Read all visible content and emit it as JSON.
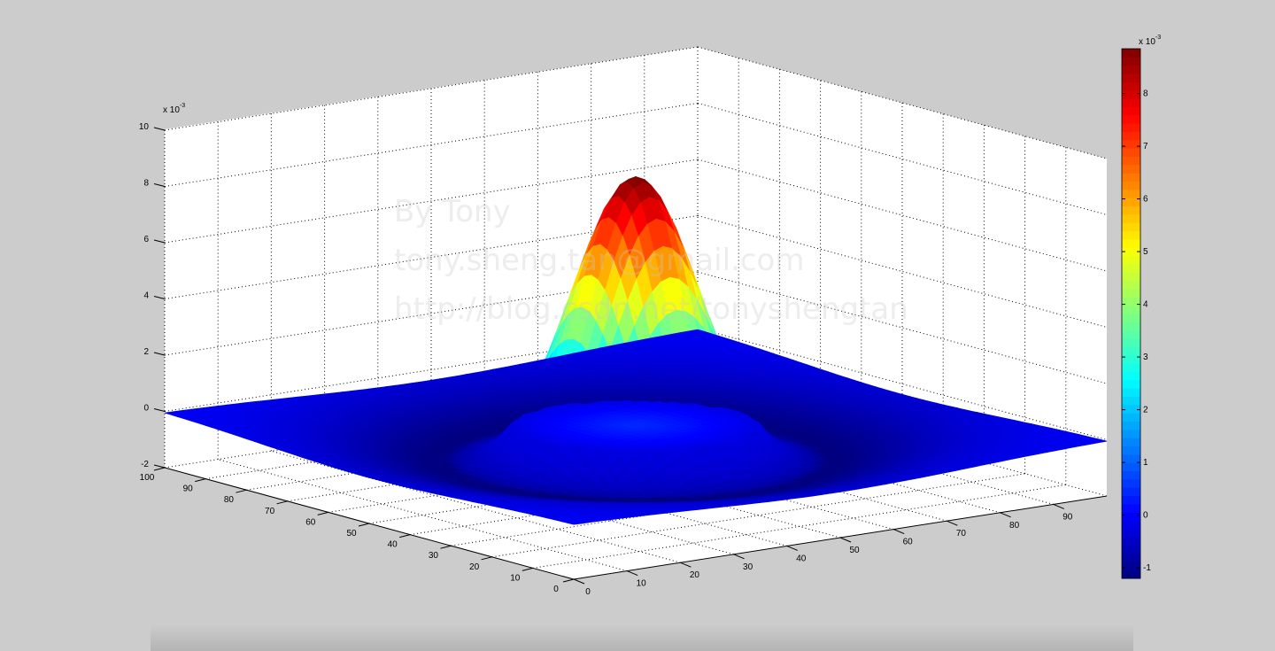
{
  "chart_data": {
    "type": "surface",
    "title": "",
    "xlabel": "",
    "ylabel": "",
    "zlabel": "",
    "x_ticks": [
      0,
      10,
      20,
      30,
      40,
      50,
      60,
      70,
      80,
      90
    ],
    "y_ticks": [
      0,
      10,
      20,
      30,
      40,
      50,
      60,
      70,
      80,
      90,
      100
    ],
    "z_ticks": [
      -2,
      0,
      2,
      4,
      6,
      8,
      10
    ],
    "xlim": [
      0,
      100
    ],
    "ylim": [
      0,
      100
    ],
    "zlim": [
      -2,
      10
    ],
    "z_exponent": {
      "base": "x 10",
      "power": "-3"
    },
    "surface": {
      "shape": "difference-of-gaussians (mexican hat)",
      "center": [
        50,
        50
      ],
      "peak_value": 8.85,
      "min_value": -1.24,
      "edge_value": 0,
      "units_scale": "x 10^-3"
    },
    "grid": true,
    "box": "3d",
    "colormap": "jet",
    "colorbar": {
      "position": "right",
      "ticks": [
        -1,
        0,
        1,
        2,
        3,
        4,
        5,
        6,
        7,
        8
      ],
      "clim": [
        -1.2,
        8.85
      ],
      "exponent": {
        "base": "x 10",
        "power": "-3"
      }
    }
  },
  "watermark": {
    "line1": "By Tony",
    "line2": "tony.sheng.tan@gmail.com",
    "line3": "http://blog.csdn.net/tonyshengtan"
  },
  "colors": {
    "background": "#cccccc",
    "axes": "#ffffff"
  }
}
